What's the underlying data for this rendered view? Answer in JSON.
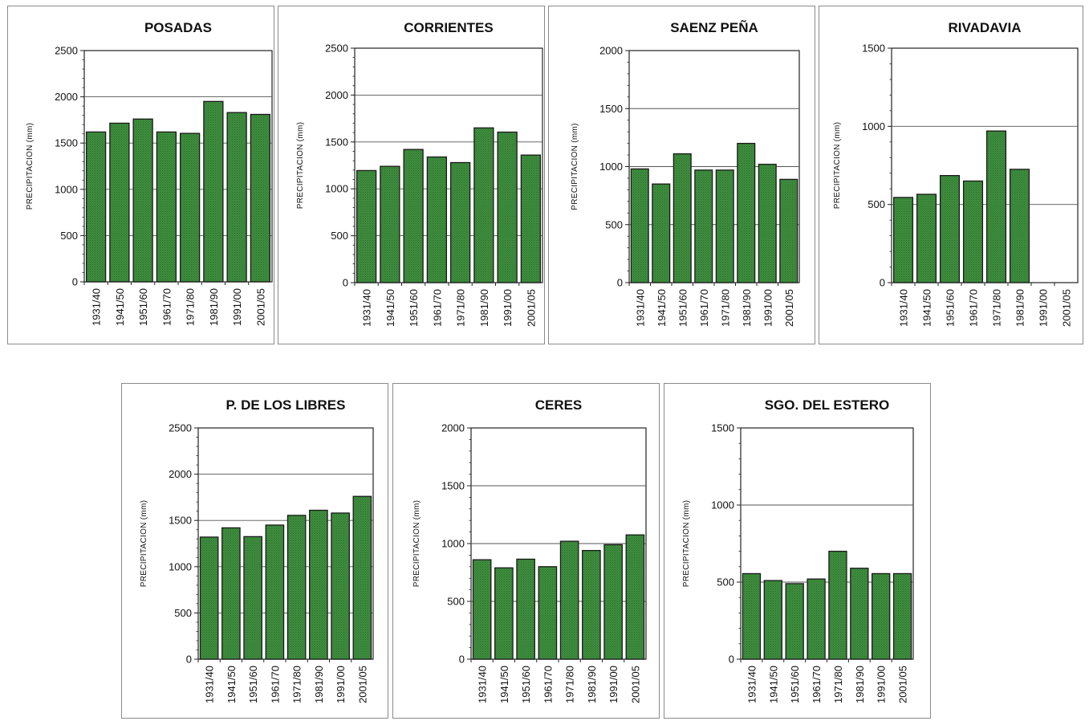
{
  "colors": {
    "bar_fill": "#3f8f3f",
    "bar_stroke": "#1a1a1a",
    "grid": "#555555"
  },
  "chart_data": [
    {
      "type": "bar",
      "title": "POSADAS",
      "ylabel": "PRECIPITACION (mm)",
      "xlabel": "",
      "categories": [
        "1931/40",
        "1941/50",
        "1951/60",
        "1961/70",
        "1971/80",
        "1981/90",
        "1991/00",
        "2001/05"
      ],
      "values": [
        1620,
        1715,
        1760,
        1620,
        1605,
        1950,
        1830,
        1810
      ],
      "yticks": [
        0,
        500,
        1000,
        1500,
        2000,
        2500
      ],
      "ylim": [
        0,
        2500
      ],
      "grid": true
    },
    {
      "type": "bar",
      "title": "CORRIENTES",
      "ylabel": "PRECIPITACION (mm)",
      "xlabel": "",
      "categories": [
        "1931/40",
        "1941/50",
        "1951/60",
        "1961/70",
        "1971/80",
        "1981/90",
        "1991/00",
        "2001/05"
      ],
      "values": [
        1195,
        1240,
        1420,
        1340,
        1280,
        1650,
        1605,
        1360
      ],
      "yticks": [
        0,
        500,
        1000,
        1500,
        2000,
        2500
      ],
      "ylim": [
        0,
        2500
      ],
      "grid": true
    },
    {
      "type": "bar",
      "title": "SAENZ PEÑA",
      "ylabel": "PRECIPITACION (mm)",
      "xlabel": "",
      "categories": [
        "1931/40",
        "1941/50",
        "1951/60",
        "1961/70",
        "1971/80",
        "1981/90",
        "1991/00",
        "2001/05"
      ],
      "values": [
        980,
        850,
        1110,
        970,
        970,
        1200,
        1020,
        890
      ],
      "yticks": [
        0,
        500,
        1000,
        1500,
        2000
      ],
      "ylim": [
        0,
        2000
      ],
      "grid": true
    },
    {
      "type": "bar",
      "title": "RIVADAVIA",
      "ylabel": "PRECIPITACION (mm)",
      "xlabel": "",
      "categories": [
        "1931/40",
        "1941/50",
        "1951/60",
        "1961/70",
        "1971/80",
        "1981/90",
        "1991/00",
        "2001/05"
      ],
      "values": [
        545,
        565,
        685,
        650,
        970,
        725,
        null,
        null
      ],
      "yticks": [
        0,
        500,
        1000,
        1500
      ],
      "ylim": [
        0,
        1500
      ],
      "grid": true
    },
    {
      "type": "bar",
      "title": "P. DE LOS LIBRES",
      "ylabel": "PRECIPITACION (mm)",
      "xlabel": "",
      "categories": [
        "1931/40",
        "1941/50",
        "1951/60",
        "1961/70",
        "1971/80",
        "1981/90",
        "1991/00",
        "2001/05"
      ],
      "values": [
        1320,
        1420,
        1325,
        1450,
        1555,
        1610,
        1580,
        1760
      ],
      "yticks": [
        0,
        500,
        1000,
        1500,
        2000,
        2500
      ],
      "ylim": [
        0,
        2500
      ],
      "grid": true
    },
    {
      "type": "bar",
      "title": "CERES",
      "ylabel": "PRECIPITACION (mm)",
      "xlabel": "",
      "categories": [
        "1931/40",
        "1941/50",
        "1951/60",
        "1961/70",
        "1971/80",
        "1981/90",
        "1991/00",
        "2001/05"
      ],
      "values": [
        860,
        790,
        865,
        800,
        1020,
        940,
        990,
        1075
      ],
      "yticks": [
        0,
        500,
        1000,
        1500,
        2000
      ],
      "ylim": [
        0,
        2000
      ],
      "grid": true
    },
    {
      "type": "bar",
      "title": "SGO. DEL ESTERO",
      "ylabel": "PRECIPITACION (mm)",
      "xlabel": "",
      "categories": [
        "1931/40",
        "1941/50",
        "1951/60",
        "1961/70",
        "1971/80",
        "1981/90",
        "1991/00",
        "2001/05"
      ],
      "values": [
        555,
        510,
        490,
        520,
        700,
        590,
        555,
        555
      ],
      "yticks": [
        0,
        500,
        1000,
        1500
      ],
      "ylim": [
        0,
        1500
      ],
      "grid": true
    }
  ]
}
